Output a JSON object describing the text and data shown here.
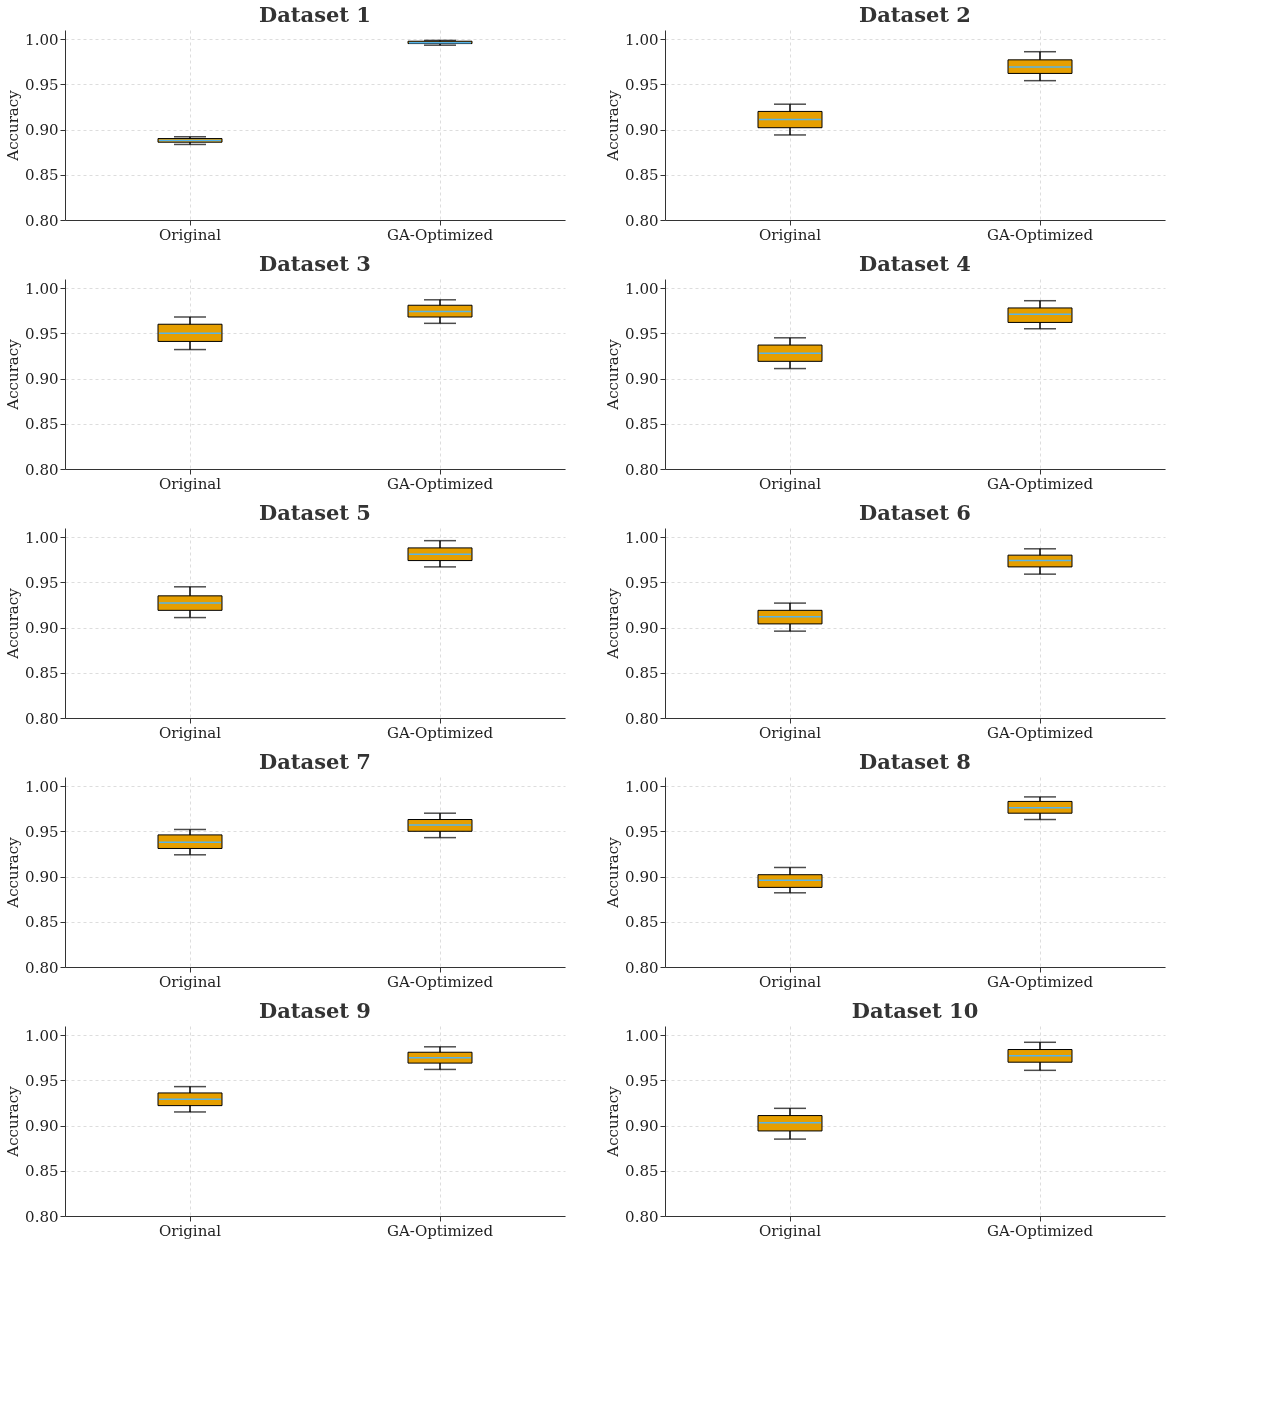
{
  "chart_data": [
    {
      "type": "box",
      "title": "Dataset 1",
      "ylabel": "Accuracy",
      "categories": [
        "Original",
        "GA-Optimized"
      ],
      "color": "#e69f00",
      "ylim": [
        0.8,
        1.01
      ],
      "yticks": [
        {
          "value": 0.8,
          "label": "0.80"
        },
        {
          "value": 0.85,
          "label": "0.85"
        },
        {
          "value": 0.9,
          "label": "0.90"
        },
        {
          "value": 0.95,
          "label": "0.95"
        },
        {
          "value": 1.0,
          "label": "1.00"
        }
      ],
      "grid": true,
      "boxes": [
        {
          "low": 0.8835,
          "q1": 0.886,
          "median": 0.888,
          "q3": 0.89,
          "high": 0.892
        },
        {
          "low": 0.9932,
          "q1": 0.995,
          "median": 0.996,
          "q3": 0.9976,
          "high": 0.9985
        }
      ]
    },
    {
      "type": "box",
      "title": "Dataset 2",
      "ylabel": "Accuracy",
      "categories": [
        "Original",
        "GA-Optimized"
      ],
      "color": "#e69f00",
      "ylim": [
        0.8,
        1.01
      ],
      "yticks": [
        {
          "value": 0.8,
          "label": "0.80"
        },
        {
          "value": 0.85,
          "label": "0.85"
        },
        {
          "value": 0.9,
          "label": "0.90"
        },
        {
          "value": 0.95,
          "label": "0.95"
        },
        {
          "value": 1.0,
          "label": "1.00"
        }
      ],
      "grid": true,
      "boxes": [
        {
          "low": 0.894,
          "q1": 0.902,
          "median": 0.911,
          "q3": 0.92,
          "high": 0.928
        },
        {
          "low": 0.954,
          "q1": 0.962,
          "median": 0.969,
          "q3": 0.977,
          "high": 0.986
        }
      ]
    },
    {
      "type": "box",
      "title": "Dataset 3",
      "ylabel": "Accuracy",
      "categories": [
        "Original",
        "GA-Optimized"
      ],
      "color": "#e69f00",
      "ylim": [
        0.8,
        1.01
      ],
      "yticks": [
        {
          "value": 0.8,
          "label": "0.80"
        },
        {
          "value": 0.85,
          "label": "0.85"
        },
        {
          "value": 0.9,
          "label": "0.90"
        },
        {
          "value": 0.95,
          "label": "0.95"
        },
        {
          "value": 1.0,
          "label": "1.00"
        }
      ],
      "grid": true,
      "boxes": [
        {
          "low": 0.932,
          "q1": 0.941,
          "median": 0.95,
          "q3": 0.96,
          "high": 0.968
        },
        {
          "low": 0.961,
          "q1": 0.968,
          "median": 0.974,
          "q3": 0.981,
          "high": 0.987
        }
      ]
    },
    {
      "type": "box",
      "title": "Dataset 4",
      "ylabel": "Accuracy",
      "categories": [
        "Original",
        "GA-Optimized"
      ],
      "color": "#e69f00",
      "ylim": [
        0.8,
        1.01
      ],
      "yticks": [
        {
          "value": 0.8,
          "label": "0.80"
        },
        {
          "value": 0.85,
          "label": "0.85"
        },
        {
          "value": 0.9,
          "label": "0.90"
        },
        {
          "value": 0.95,
          "label": "0.95"
        },
        {
          "value": 1.0,
          "label": "1.00"
        }
      ],
      "grid": true,
      "boxes": [
        {
          "low": 0.911,
          "q1": 0.919,
          "median": 0.928,
          "q3": 0.937,
          "high": 0.945
        },
        {
          "low": 0.955,
          "q1": 0.962,
          "median": 0.971,
          "q3": 0.978,
          "high": 0.986
        }
      ]
    },
    {
      "type": "box",
      "title": "Dataset 5",
      "ylabel": "Accuracy",
      "categories": [
        "Original",
        "GA-Optimized"
      ],
      "color": "#e69f00",
      "ylim": [
        0.8,
        1.01
      ],
      "yticks": [
        {
          "value": 0.8,
          "label": "0.80"
        },
        {
          "value": 0.85,
          "label": "0.85"
        },
        {
          "value": 0.9,
          "label": "0.90"
        },
        {
          "value": 0.95,
          "label": "0.95"
        },
        {
          "value": 1.0,
          "label": "1.00"
        }
      ],
      "grid": true,
      "boxes": [
        {
          "low": 0.911,
          "q1": 0.919,
          "median": 0.927,
          "q3": 0.935,
          "high": 0.945
        },
        {
          "low": 0.967,
          "q1": 0.974,
          "median": 0.981,
          "q3": 0.988,
          "high": 0.996
        }
      ]
    },
    {
      "type": "box",
      "title": "Dataset 6",
      "ylabel": "Accuracy",
      "categories": [
        "Original",
        "GA-Optimized"
      ],
      "color": "#e69f00",
      "ylim": [
        0.8,
        1.01
      ],
      "yticks": [
        {
          "value": 0.8,
          "label": "0.80"
        },
        {
          "value": 0.85,
          "label": "0.85"
        },
        {
          "value": 0.9,
          "label": "0.90"
        },
        {
          "value": 0.95,
          "label": "0.95"
        },
        {
          "value": 1.0,
          "label": "1.00"
        }
      ],
      "grid": true,
      "boxes": [
        {
          "low": 0.896,
          "q1": 0.904,
          "median": 0.912,
          "q3": 0.919,
          "high": 0.927
        },
        {
          "low": 0.959,
          "q1": 0.967,
          "median": 0.974,
          "q3": 0.98,
          "high": 0.987
        }
      ]
    },
    {
      "type": "box",
      "title": "Dataset 7",
      "ylabel": "Accuracy",
      "categories": [
        "Original",
        "GA-Optimized"
      ],
      "color": "#e69f00",
      "ylim": [
        0.8,
        1.01
      ],
      "yticks": [
        {
          "value": 0.8,
          "label": "0.80"
        },
        {
          "value": 0.85,
          "label": "0.85"
        },
        {
          "value": 0.9,
          "label": "0.90"
        },
        {
          "value": 0.95,
          "label": "0.95"
        },
        {
          "value": 1.0,
          "label": "1.00"
        }
      ],
      "grid": true,
      "boxes": [
        {
          "low": 0.924,
          "q1": 0.931,
          "median": 0.938,
          "q3": 0.946,
          "high": 0.952
        },
        {
          "low": 0.943,
          "q1": 0.95,
          "median": 0.957,
          "q3": 0.963,
          "high": 0.97
        }
      ]
    },
    {
      "type": "box",
      "title": "Dataset 8",
      "ylabel": "Accuracy",
      "categories": [
        "Original",
        "GA-Optimized"
      ],
      "color": "#e69f00",
      "ylim": [
        0.8,
        1.01
      ],
      "yticks": [
        {
          "value": 0.8,
          "label": "0.80"
        },
        {
          "value": 0.85,
          "label": "0.85"
        },
        {
          "value": 0.9,
          "label": "0.90"
        },
        {
          "value": 0.95,
          "label": "0.95"
        },
        {
          "value": 1.0,
          "label": "1.00"
        }
      ],
      "grid": true,
      "boxes": [
        {
          "low": 0.882,
          "q1": 0.888,
          "median": 0.896,
          "q3": 0.902,
          "high": 0.91
        },
        {
          "low": 0.963,
          "q1": 0.97,
          "median": 0.976,
          "q3": 0.983,
          "high": 0.988
        }
      ]
    },
    {
      "type": "box",
      "title": "Dataset 9",
      "ylabel": "Accuracy",
      "categories": [
        "Original",
        "GA-Optimized"
      ],
      "color": "#e69f00",
      "ylim": [
        0.8,
        1.01
      ],
      "yticks": [
        {
          "value": 0.8,
          "label": "0.80"
        },
        {
          "value": 0.85,
          "label": "0.85"
        },
        {
          "value": 0.9,
          "label": "0.90"
        },
        {
          "value": 0.95,
          "label": "0.95"
        },
        {
          "value": 1.0,
          "label": "1.00"
        }
      ],
      "grid": true,
      "boxes": [
        {
          "low": 0.915,
          "q1": 0.922,
          "median": 0.929,
          "q3": 0.936,
          "high": 0.943
        },
        {
          "low": 0.962,
          "q1": 0.969,
          "median": 0.975,
          "q3": 0.981,
          "high": 0.987
        }
      ]
    },
    {
      "type": "box",
      "title": "Dataset 10",
      "ylabel": "Accuracy",
      "categories": [
        "Original",
        "GA-Optimized"
      ],
      "color": "#e69f00",
      "ylim": [
        0.8,
        1.01
      ],
      "yticks": [
        {
          "value": 0.8,
          "label": "0.80"
        },
        {
          "value": 0.85,
          "label": "0.85"
        },
        {
          "value": 0.9,
          "label": "0.90"
        },
        {
          "value": 0.95,
          "label": "0.95"
        },
        {
          "value": 1.0,
          "label": "1.00"
        }
      ],
      "grid": true,
      "boxes": [
        {
          "low": 0.885,
          "q1": 0.894,
          "median": 0.903,
          "q3": 0.911,
          "high": 0.919
        },
        {
          "low": 0.961,
          "q1": 0.97,
          "median": 0.977,
          "q3": 0.984,
          "high": 0.992
        }
      ]
    }
  ]
}
